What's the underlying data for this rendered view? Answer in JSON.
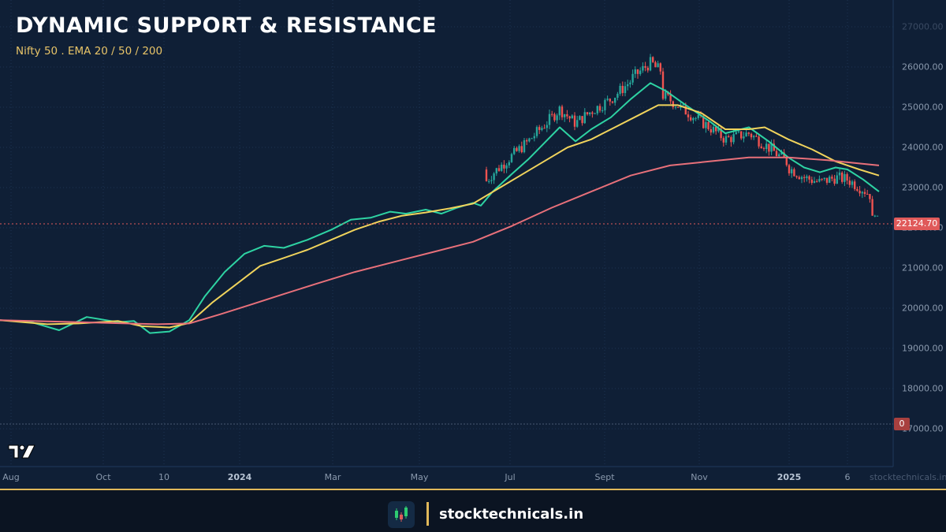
{
  "header": {
    "title": "DYNAMIC SUPPORT & RESISTANCE",
    "subtitle": "Nifty 50 . EMA 20 / 50 / 200"
  },
  "price_axis": {
    "labels": [
      "27000.00",
      "26000.00",
      "25000.00",
      "24000.00",
      "23000.00",
      "22000.00",
      "21000.00",
      "20000.00",
      "19000.00",
      "18000.00",
      "17000.00"
    ],
    "current_price": "22124.70",
    "zero_marker": "0"
  },
  "time_axis": {
    "labels": [
      {
        "text": "Aug",
        "x": 14,
        "bold": false
      },
      {
        "text": "Oct",
        "x": 131,
        "bold": false
      },
      {
        "text": "10",
        "x": 208,
        "bold": false
      },
      {
        "text": "2024",
        "x": 304,
        "bold": true
      },
      {
        "text": "Mar",
        "x": 422,
        "bold": false
      },
      {
        "text": "May",
        "x": 532,
        "bold": false
      },
      {
        "text": "Jul",
        "x": 647,
        "bold": false
      },
      {
        "text": "Sept",
        "x": 767,
        "bold": false
      },
      {
        "text": "Nov",
        "x": 887,
        "bold": false
      },
      {
        "text": "2025",
        "x": 1001,
        "bold": true
      },
      {
        "text": "6",
        "x": 1075,
        "bold": false
      }
    ]
  },
  "watermark": "stocktechnicals.in",
  "footer": {
    "brand": "stocktechnicals.in"
  },
  "colors": {
    "ema20": "#2ed3a3",
    "ema50": "#f0d35c",
    "ema200": "#e8707a",
    "up": "#26a69a",
    "down": "#ef5350",
    "background": "#0f1f36",
    "accent": "#e0b85a"
  },
  "chart_data": {
    "type": "line",
    "title": "DYNAMIC SUPPORT & RESISTANCE",
    "subtitle": "Nifty 50 . EMA 20 / 50 / 200",
    "xlabel": "",
    "ylabel": "",
    "ylim": [
      16800,
      27000
    ],
    "grid": true,
    "x_ticks": [
      "Aug",
      "Oct",
      "10",
      "2024",
      "Mar",
      "May",
      "Jul",
      "Sept",
      "Nov",
      "2025",
      "6"
    ],
    "last_price": 22124.7,
    "series": [
      {
        "name": "EMA 20",
        "color": "#2ed3a3",
        "points": [
          [
            0,
            19700
          ],
          [
            40,
            19650
          ],
          [
            75,
            19450
          ],
          [
            110,
            19780
          ],
          [
            150,
            19650
          ],
          [
            170,
            19680
          ],
          [
            190,
            19380
          ],
          [
            215,
            19420
          ],
          [
            240,
            19700
          ],
          [
            260,
            20300
          ],
          [
            285,
            20900
          ],
          [
            310,
            21350
          ],
          [
            335,
            21550
          ],
          [
            360,
            21500
          ],
          [
            390,
            21700
          ],
          [
            420,
            21950
          ],
          [
            445,
            22200
          ],
          [
            470,
            22250
          ],
          [
            495,
            22400
          ],
          [
            515,
            22350
          ],
          [
            540,
            22450
          ],
          [
            560,
            22350
          ],
          [
            580,
            22500
          ],
          [
            600,
            22620
          ],
          [
            610,
            22550
          ],
          [
            625,
            22900
          ],
          [
            650,
            23350
          ],
          [
            670,
            23700
          ],
          [
            690,
            24100
          ],
          [
            710,
            24500
          ],
          [
            730,
            24150
          ],
          [
            750,
            24450
          ],
          [
            775,
            24750
          ],
          [
            800,
            25200
          ],
          [
            825,
            25600
          ],
          [
            845,
            25400
          ],
          [
            870,
            25050
          ],
          [
            900,
            24650
          ],
          [
            920,
            24350
          ],
          [
            950,
            24500
          ],
          [
            975,
            24150
          ],
          [
            1000,
            23750
          ],
          [
            1020,
            23500
          ],
          [
            1040,
            23380
          ],
          [
            1060,
            23500
          ],
          [
            1075,
            23450
          ],
          [
            1095,
            23200
          ],
          [
            1115,
            22900
          ]
        ]
      },
      {
        "name": "EMA 50",
        "color": "#f0d35c",
        "points": [
          [
            0,
            19700
          ],
          [
            60,
            19600
          ],
          [
            100,
            19620
          ],
          [
            150,
            19680
          ],
          [
            180,
            19550
          ],
          [
            215,
            19520
          ],
          [
            240,
            19630
          ],
          [
            270,
            20150
          ],
          [
            300,
            20600
          ],
          [
            330,
            21050
          ],
          [
            360,
            21250
          ],
          [
            390,
            21450
          ],
          [
            420,
            21700
          ],
          [
            450,
            21950
          ],
          [
            480,
            22150
          ],
          [
            510,
            22300
          ],
          [
            540,
            22380
          ],
          [
            570,
            22480
          ],
          [
            600,
            22600
          ],
          [
            630,
            22950
          ],
          [
            660,
            23300
          ],
          [
            690,
            23650
          ],
          [
            720,
            24000
          ],
          [
            750,
            24200
          ],
          [
            780,
            24500
          ],
          [
            810,
            24800
          ],
          [
            835,
            25050
          ],
          [
            860,
            25050
          ],
          [
            890,
            24850
          ],
          [
            920,
            24450
          ],
          [
            950,
            24450
          ],
          [
            970,
            24500
          ],
          [
            1000,
            24200
          ],
          [
            1030,
            23950
          ],
          [
            1060,
            23650
          ],
          [
            1090,
            23450
          ],
          [
            1115,
            23300
          ]
        ]
      },
      {
        "name": "EMA 200",
        "color": "#e8707a",
        "points": [
          [
            0,
            19700
          ],
          [
            100,
            19650
          ],
          [
            200,
            19600
          ],
          [
            240,
            19620
          ],
          [
            280,
            19850
          ],
          [
            320,
            20100
          ],
          [
            360,
            20350
          ],
          [
            400,
            20600
          ],
          [
            450,
            20900
          ],
          [
            500,
            21150
          ],
          [
            550,
            21400
          ],
          [
            600,
            21650
          ],
          [
            650,
            22050
          ],
          [
            700,
            22500
          ],
          [
            750,
            22900
          ],
          [
            800,
            23300
          ],
          [
            850,
            23550
          ],
          [
            900,
            23650
          ],
          [
            950,
            23750
          ],
          [
            1000,
            23750
          ],
          [
            1050,
            23680
          ],
          [
            1080,
            23620
          ],
          [
            1115,
            23550
          ]
        ]
      }
    ]
  }
}
